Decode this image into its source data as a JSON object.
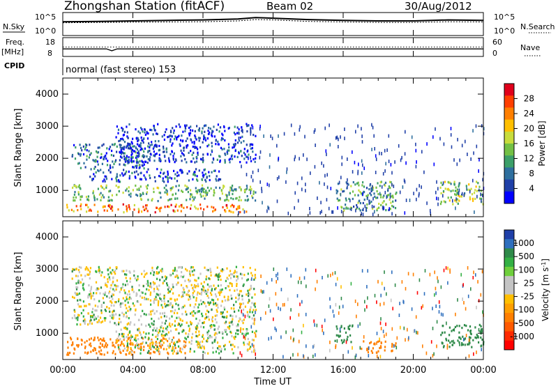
{
  "header": {
    "station": "Zhongshan Station (fitACF)",
    "beam": "Beam 02",
    "date": "30/Aug/2012"
  },
  "panel_labels": {
    "nsky": "N.Sky",
    "nsearch": "N.Search",
    "nsky_ticks": [
      "10^5",
      "10^0"
    ],
    "nsearch_ticks": [
      "10^5",
      "10^0"
    ],
    "freq": "Freq.",
    "freq_unit": "[MHz]",
    "freq_ticks": [
      "18",
      "8"
    ],
    "nave": "Nave",
    "nave_ticks": [
      "60",
      "0"
    ],
    "cpid": "CPID",
    "cpid_value": "normal (fast stereo) 153"
  },
  "x_axis": {
    "label": "Time UT",
    "ticks": [
      "00:00",
      "04:00",
      "08:00",
      "12:00",
      "16:00",
      "20:00",
      "00:00"
    ],
    "range_hours": [
      0,
      24
    ]
  },
  "colorbars": {
    "power": {
      "title": "Power [dB]",
      "labels": [
        "28",
        "24",
        "20",
        "16",
        "12",
        "8",
        "4"
      ],
      "colors": [
        "#e0001b",
        "#ff3f00",
        "#ff7f00",
        "#ffbf00",
        "#c8dc3c",
        "#73c045",
        "#3c9f69",
        "#2e6f9e",
        "#2040a8",
        "#0000ff"
      ]
    },
    "velocity": {
      "title": "Velocity  [m s",
      "title_sup": "-1",
      "title_end": "]",
      "labels": [
        "1000",
        "500",
        "100",
        "25",
        "-25",
        "-100",
        "-500",
        "-1000"
      ],
      "colors": [
        "#1f3fa8",
        "#2e6fbe",
        "#2f8a4a",
        "#33b044",
        "#6fcf3c",
        "#c4c4c4",
        "#c4c4c4",
        "#ffbf00",
        "#ff9f00",
        "#ff7f00",
        "#ff5a00",
        "#ff2a00",
        "#ff0000"
      ]
    }
  },
  "chart_data": [
    {
      "type": "line",
      "title": "Zhongshan Station (fitACF)",
      "series": [
        {
          "name": "N.Sky",
          "x": [
            0,
            2,
            4,
            6,
            8,
            10,
            11,
            12,
            14,
            16,
            18,
            20,
            22,
            24
          ],
          "y": [
            1000,
            1200,
            1500,
            2000,
            2500,
            4000,
            8000,
            6000,
            3000,
            2000,
            1500,
            1500,
            2500,
            2000
          ]
        },
        {
          "name": "N.Search",
          "x": [
            0,
            2,
            4,
            6,
            8,
            10,
            11,
            12,
            14,
            16,
            18,
            20,
            22,
            24
          ],
          "y": [
            600,
            700,
            800,
            900,
            1000,
            1500,
            3000,
            2500,
            1200,
            900,
            700,
            700,
            1000,
            900
          ]
        }
      ],
      "yscale": "log",
      "ylim": [
        1,
        100000
      ]
    },
    {
      "type": "line",
      "series": [
        {
          "name": "Freq.",
          "x": [
            0,
            2.5,
            2.8,
            3.1,
            24
          ],
          "y": [
            12,
            12,
            11,
            12,
            12
          ]
        },
        {
          "name": "Nave",
          "x": [
            0,
            24
          ],
          "y": [
            30,
            30
          ]
        }
      ],
      "ylim_freq": [
        8,
        18
      ],
      "ylim_nave": [
        0,
        60
      ]
    },
    {
      "type": "heatmap",
      "quantity": "Power",
      "ylabel": "Slant Range [km]",
      "xlabel": "Time UT",
      "xlim": [
        0,
        24
      ],
      "ylim": [
        180,
        4500
      ],
      "yticks": [
        1000,
        2000,
        3000,
        4000
      ],
      "echo_regions": [
        {
          "t0": 0.2,
          "t1": 10.5,
          "r0": 350,
          "r1": 600,
          "value": 24
        },
        {
          "t0": 0.5,
          "t1": 11,
          "r0": 700,
          "r1": 1200,
          "value": 14
        },
        {
          "t0": 1.5,
          "t1": 9,
          "r0": 1300,
          "r1": 1700,
          "value": 6
        },
        {
          "t0": 0.5,
          "t1": 5,
          "r0": 1700,
          "r1": 2500,
          "value": 8
        },
        {
          "t0": 3,
          "t1": 11,
          "r0": 1900,
          "r1": 3100,
          "value": 5
        },
        {
          "t0": 15.5,
          "t1": 19,
          "r0": 400,
          "r1": 1300,
          "value": 12
        },
        {
          "t0": 21.5,
          "t1": 24,
          "r0": 600,
          "r1": 1300,
          "value": 16
        }
      ]
    },
    {
      "type": "heatmap",
      "quantity": "Velocity",
      "ylabel": "Slant Range [km]",
      "xlabel": "Time UT",
      "xlim": [
        0,
        24
      ],
      "ylim": [
        180,
        4500
      ],
      "yticks": [
        1000,
        2000,
        3000,
        4000
      ],
      "echo_regions": [
        {
          "t0": 0.2,
          "t1": 7,
          "r0": 350,
          "r1": 900,
          "value": -200
        },
        {
          "t0": 3,
          "t1": 11,
          "r0": 400,
          "r1": 1300,
          "value": 0
        },
        {
          "t0": 0.5,
          "t1": 11,
          "r0": 1300,
          "r1": 3100,
          "value": 0
        },
        {
          "t0": 15.5,
          "t1": 16.5,
          "r0": 700,
          "r1": 1300,
          "value": 150
        },
        {
          "t0": 17,
          "t1": 19,
          "r0": 400,
          "r1": 800,
          "value": -200
        },
        {
          "t0": 21.5,
          "t1": 24,
          "r0": 600,
          "r1": 1300,
          "value": 150
        }
      ]
    }
  ]
}
